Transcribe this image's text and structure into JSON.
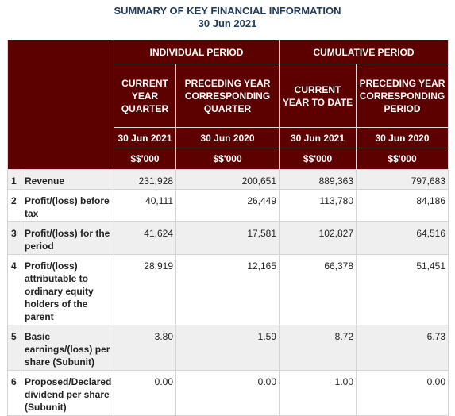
{
  "title_line1": "SUMMARY OF KEY FINANCIAL INFORMATION",
  "title_line2": "30 Jun 2021",
  "groups": {
    "individual": "INDIVIDUAL PERIOD",
    "cumulative": "CUMULATIVE PERIOD"
  },
  "columns": [
    {
      "header": "CURRENT YEAR QUARTER",
      "date": "30 Jun 2021",
      "unit": "$$'000"
    },
    {
      "header": "PRECEDING YEAR CORRESPONDING QUARTER",
      "date": "30 Jun 2020",
      "unit": "$$'000"
    },
    {
      "header": "CURRENT YEAR TO DATE",
      "date": "30 Jun 2021",
      "unit": "$$'000"
    },
    {
      "header": "PRECEDING YEAR CORRESPONDING PERIOD",
      "date": "30 Jun 2020",
      "unit": "$$'000"
    }
  ],
  "rows": [
    {
      "no": "1",
      "label": "Revenue",
      "values": [
        "231,928",
        "200,651",
        "889,363",
        "797,683"
      ]
    },
    {
      "no": "2",
      "label": "Profit/(loss) before tax",
      "values": [
        "40,111",
        "26,449",
        "113,780",
        "84,186"
      ]
    },
    {
      "no": "3",
      "label": "Profit/(loss) for the period",
      "values": [
        "41,624",
        "17,581",
        "102,827",
        "64,516"
      ]
    },
    {
      "no": "4",
      "label": "Profit/(loss) attributable to ordinary equity holders of the parent",
      "values": [
        "28,919",
        "12,165",
        "66,378",
        "51,451"
      ]
    },
    {
      "no": "5",
      "label": "Basic earnings/(loss) per share (Subunit)",
      "values": [
        "3.80",
        "1.59",
        "8.72",
        "6.73"
      ]
    },
    {
      "no": "6",
      "label": "Proposed/Declared dividend per share (Subunit)",
      "values": [
        "0.00",
        "0.00",
        "1.00",
        "0.00"
      ]
    }
  ]
}
